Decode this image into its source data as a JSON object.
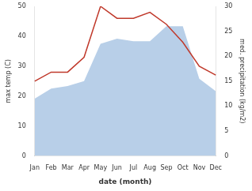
{
  "chart_data": {
    "type": "line",
    "categories": [
      "Jan",
      "Feb",
      "Mar",
      "Apr",
      "May",
      "Jun",
      "Jul",
      "Aug",
      "Sep",
      "Oct",
      "Nov",
      "Dec"
    ],
    "series": [
      {
        "type": "area",
        "axis": "y2",
        "color": "#b8cfe8",
        "values": [
          11.5,
          13.5,
          14,
          15,
          22.5,
          23.5,
          23,
          23,
          26,
          26,
          15.5,
          13
        ]
      },
      {
        "type": "line",
        "color": "#c0392b",
        "values": [
          25,
          28,
          28,
          33,
          50,
          46,
          46,
          48,
          44,
          38,
          30,
          27
        ]
      }
    ],
    "xlabel": "date (month)",
    "ylabel": "max temp (C)",
    "y2label": "med. precipitation (kg/m2)",
    "ylim": [
      0,
      50
    ],
    "yticks": [
      0,
      10,
      20,
      30,
      40,
      50
    ],
    "y2lim": [
      0,
      30
    ],
    "y2ticks": [
      0,
      5,
      10,
      15,
      20,
      25,
      30
    ],
    "grid": false
  }
}
